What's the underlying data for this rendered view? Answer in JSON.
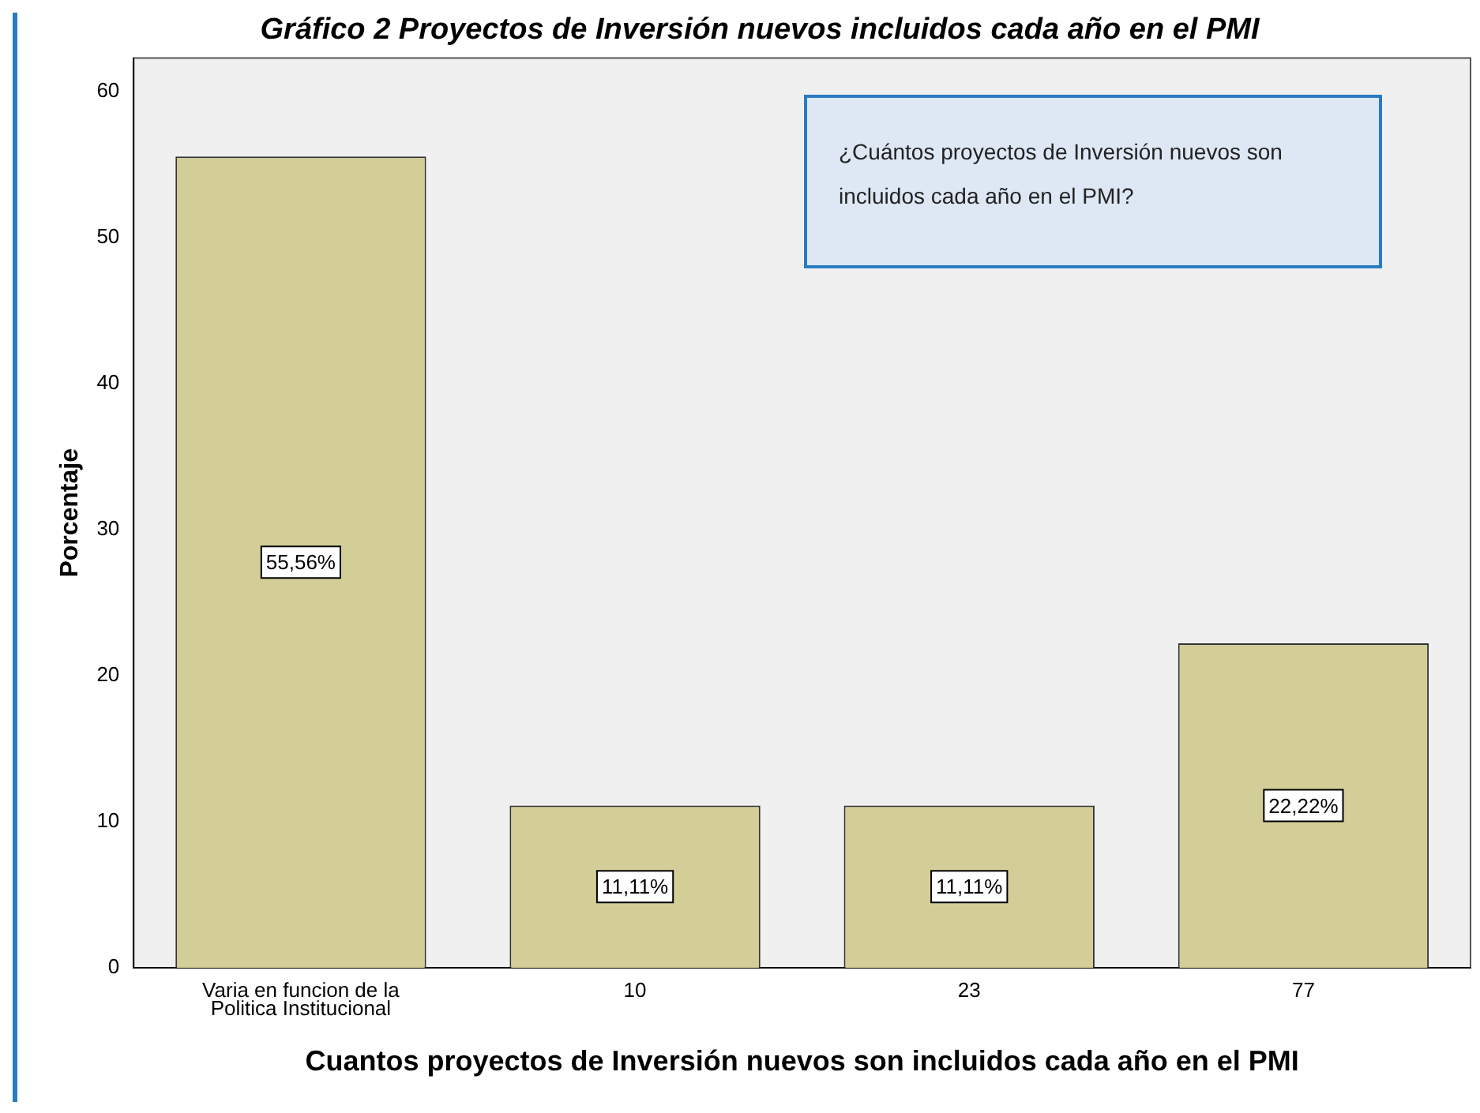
{
  "chart_data": {
    "type": "bar",
    "title": "Gráfico 2 Proyectos de Inversión nuevos incluidos cada año en el PMI",
    "xlabel": "Cuantos proyectos de Inversión nuevos son incluidos cada año en el PMI",
    "ylabel": "Porcentaje",
    "categories": [
      "Varia en funcion de la Politica Institucional",
      "10",
      "23",
      "77"
    ],
    "values": [
      55.56,
      11.11,
      11.11,
      22.22
    ],
    "value_labels": [
      "55,56%",
      "11,11%",
      "11,11%",
      "22,22%"
    ],
    "color": "#d3ce97",
    "ylim": [
      0,
      62.3
    ],
    "yticks": [
      0,
      10,
      20,
      30,
      40,
      50,
      60
    ],
    "grid": false,
    "legend": false,
    "annotations": [
      "¿Cuántos proyectos de Inversión nuevos son incluidos cada año en el PMI?"
    ]
  }
}
